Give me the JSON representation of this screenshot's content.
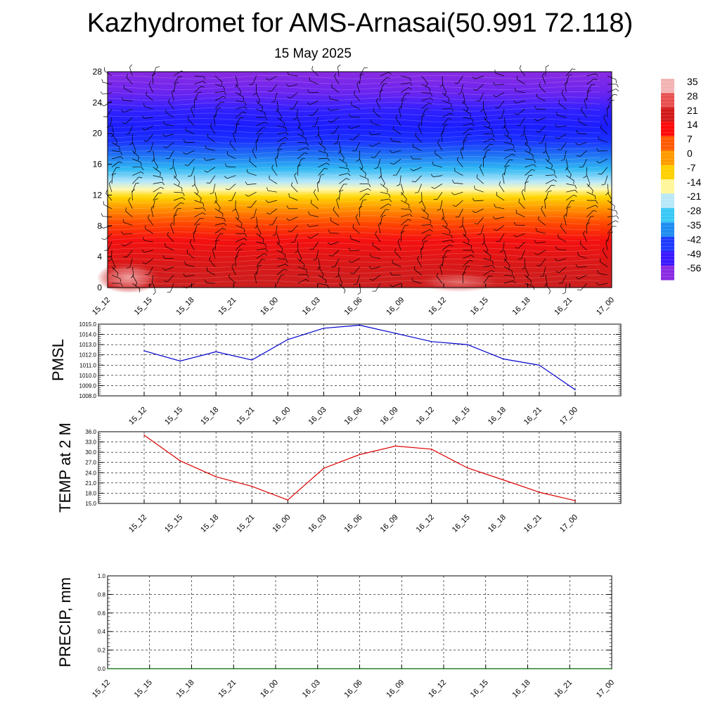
{
  "title": "Kazhydromet for AMS-Arnasai(50.991 72.118)",
  "subtitle": "15 May 2025",
  "colors": {
    "pmsl_line": "#0000cc",
    "temp_line": "#dd0000",
    "precip_line": "#006600"
  },
  "colorbar": {
    "labels": [
      "35",
      "28",
      "21",
      "14",
      "7",
      "0",
      "-7",
      "-14",
      "-21",
      "-28",
      "-35",
      "-42",
      "-49",
      "-56"
    ],
    "stops": [
      "#f2b3b3",
      "#e85050",
      "#d21919",
      "#ff0a0a",
      "#ff5a00",
      "#ff9a00",
      "#ffd000",
      "#fff69a",
      "#b8e8f8",
      "#38c8f5",
      "#1e8cf0",
      "#1e3cff",
      "#3a18ff",
      "#8a2be2"
    ]
  },
  "chart_data": [
    {
      "type": "heatmap",
      "description_values": "air temperature vs height with wind barbs",
      "x_ticks": [
        "15_12",
        "15_15",
        "15_18",
        "15_21",
        "16_00",
        "16_03",
        "16_06",
        "16_09",
        "16_12",
        "16_15",
        "16_18",
        "16_21",
        "17_00"
      ],
      "y_ticks": [
        "0",
        "4",
        "8",
        "12",
        "16",
        "20",
        "24",
        "28"
      ],
      "ylim": [
        0,
        28
      ],
      "color_range": [
        -56,
        35
      ]
    },
    {
      "type": "line",
      "ylabel": "PMSL",
      "x": [
        "15_12",
        "15_15",
        "15_18",
        "15_21",
        "16_00",
        "16_03",
        "16_06",
        "16_09",
        "16_12",
        "16_15",
        "16_18",
        "16_21",
        "17_00"
      ],
      "values": [
        1012.4,
        1011.4,
        1012.3,
        1011.5,
        1013.5,
        1014.6,
        1014.9,
        1014.1,
        1013.3,
        1013.0,
        1011.6,
        1011.0,
        1008.6
      ],
      "ylim": [
        1008.0,
        1015.0
      ],
      "y_ticks": [
        "1015.0",
        "1014.0",
        "1013.0",
        "1012.0",
        "1011.0",
        "1010.0",
        "1009.0",
        "1008.0"
      ],
      "grid": true
    },
    {
      "type": "line",
      "ylabel": "TEMP at 2 M",
      "x": [
        "15_12",
        "15_15",
        "15_18",
        "15_21",
        "16_00",
        "16_03",
        "16_06",
        "16_09",
        "16_12",
        "16_15",
        "16_18",
        "16_21",
        "17_00"
      ],
      "values": [
        35.0,
        27.5,
        22.8,
        20.0,
        16.0,
        25.3,
        29.3,
        31.8,
        30.9,
        25.4,
        21.9,
        18.3,
        15.8
      ],
      "ylim": [
        15.0,
        36.0
      ],
      "y_ticks": [
        "36.0",
        "33.0",
        "30.0",
        "27.0",
        "24.0",
        "21.0",
        "18.0",
        "15.0"
      ],
      "grid": true
    },
    {
      "type": "line",
      "ylabel": "PRECIP, mm",
      "x": [
        "15_12",
        "15_15",
        "15_18",
        "15_21",
        "16_00",
        "16_03",
        "16_06",
        "16_09",
        "16_12",
        "16_15",
        "16_18",
        "16_21",
        "17_00"
      ],
      "values": [
        0,
        0,
        0,
        0,
        0,
        0,
        0,
        0,
        0,
        0,
        0,
        0,
        0
      ],
      "ylim": [
        0.0,
        1.0
      ],
      "y_ticks": [
        "1.0",
        "0.8",
        "0.6",
        "0.4",
        "0.2",
        "0.0"
      ],
      "grid": true
    }
  ]
}
